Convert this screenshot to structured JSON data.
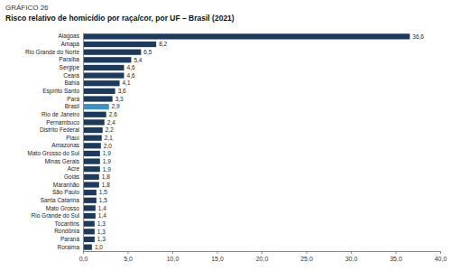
{
  "chart_data": {
    "type": "bar",
    "orientation": "horizontal",
    "title": "GRÁFICO 26",
    "subtitle": "Risco relativo de homicídio por raça/cor, por UF – Brasil (2021)",
    "categories": [
      "Alagoas",
      "Amapá",
      "Rio Grande do Norte",
      "Paraíba",
      "Sergipe",
      "Ceará",
      "Bahia",
      "Espírito Santo",
      "Pará",
      "Brasil",
      "Rio de Janeiro",
      "Pernambuco",
      "Distrito Federal",
      "Piauí",
      "Amazonas",
      "Mato Grosso do Sul",
      "Minas Gerais",
      "Acre",
      "Goiás",
      "Maranhão",
      "São Paulo",
      "Santa Catarina",
      "Mato Grosso",
      "Rio Grande do Sul",
      "Tocantins",
      "Rondônia",
      "Paraná",
      "Roraima"
    ],
    "values": [
      36.6,
      8.2,
      6.5,
      5.4,
      4.6,
      4.6,
      4.1,
      3.6,
      3.3,
      2.9,
      2.6,
      2.4,
      2.2,
      2.1,
      2.0,
      1.9,
      1.9,
      1.9,
      1.8,
      1.8,
      1.5,
      1.5,
      1.4,
      1.4,
      1.3,
      1.3,
      1.3,
      1.0
    ],
    "value_labels": [
      "36,6",
      "8,2",
      "6,5",
      "5,4",
      "4,6",
      "4,6",
      "4,1",
      "3,6",
      "3,3",
      "2,9",
      "2,6",
      "2,4",
      "2,2",
      "2,1",
      "2,0",
      "1,9",
      "1,9",
      "1,9",
      "1,8",
      "1,8",
      "1,5",
      "1,5",
      "1,4",
      "1,4",
      "1,3",
      "1,3",
      "1,3",
      "1,0"
    ],
    "data_labels": true,
    "colors": [
      "#1c3a5e",
      "#1c3a5e",
      "#1c3a5e",
      "#1c3a5e",
      "#1c3a5e",
      "#1c3a5e",
      "#1c3a5e",
      "#1c3a5e",
      "#1c3a5e",
      "#3d8fc4",
      "#1c3a5e",
      "#1c3a5e",
      "#1c3a5e",
      "#1c3a5e",
      "#1c3a5e",
      "#1c3a5e",
      "#1c3a5e",
      "#1c3a5e",
      "#1c3a5e",
      "#1c3a5e",
      "#1c3a5e",
      "#1c3a5e",
      "#1c3a5e",
      "#1c3a5e",
      "#1c3a5e",
      "#1c3a5e",
      "#1c3a5e",
      "#1c3a5e"
    ],
    "xlim": [
      0,
      40
    ],
    "xticks": [
      {
        "value": 0,
        "label": "0,0"
      },
      {
        "value": 5,
        "label": "5,0"
      },
      {
        "value": 10,
        "label": "10,0"
      },
      {
        "value": 15,
        "label": "15,0"
      },
      {
        "value": 20,
        "label": "20,0"
      },
      {
        "value": 25,
        "label": "25,0"
      },
      {
        "value": 30,
        "label": "30,0"
      },
      {
        "value": 35,
        "label": "35,0"
      },
      {
        "value": 40,
        "label": "40,0"
      }
    ],
    "grid": false
  }
}
